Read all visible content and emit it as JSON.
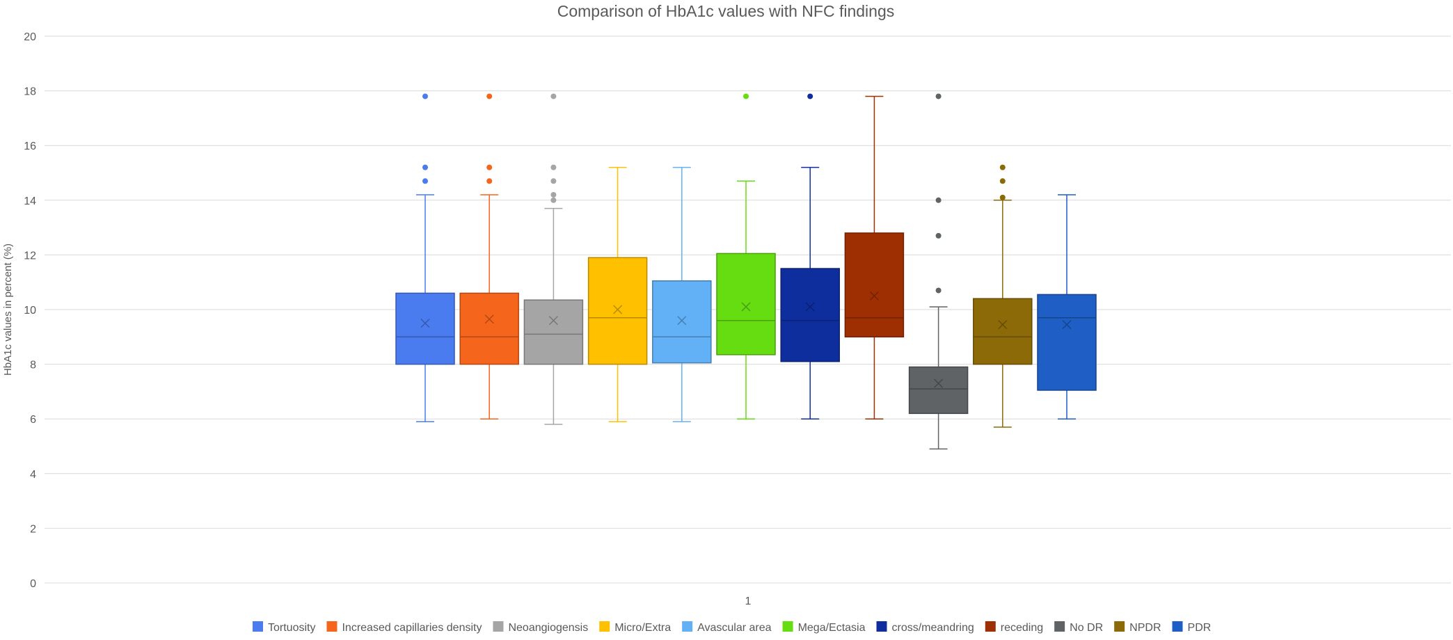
{
  "chart_data": {
    "type": "box",
    "title": "Comparison of HbA1c values with NFC findings",
    "ylabel": "HbA1c values in percent (%)",
    "xlabel": "",
    "categories": [
      "1"
    ],
    "ylim": [
      0,
      20
    ],
    "yticks": [
      0,
      2,
      4,
      6,
      8,
      10,
      12,
      14,
      16,
      18,
      20
    ],
    "grid": true,
    "legend_position": "bottom",
    "series": [
      {
        "name": "Tortuosity",
        "color": "#4A7CF0",
        "min": 5.9,
        "q1": 8.0,
        "median": 9.0,
        "q3": 10.6,
        "max": 14.2,
        "mean": 9.5,
        "outliers": [
          14.7,
          15.2,
          17.8
        ]
      },
      {
        "name": "Increased capillaries density",
        "color": "#F5651C",
        "min": 6.0,
        "q1": 8.0,
        "median": 9.0,
        "q3": 10.6,
        "max": 14.2,
        "mean": 9.65,
        "outliers": [
          14.7,
          15.2,
          17.8
        ]
      },
      {
        "name": "Neoangiogensis",
        "color": "#A5A5A5",
        "min": 5.8,
        "q1": 8.0,
        "median": 9.1,
        "q3": 10.35,
        "max": 13.7,
        "mean": 9.6,
        "outliers": [
          14.0,
          14.2,
          14.7,
          15.2,
          17.8
        ]
      },
      {
        "name": "Micro/Extra",
        "color": "#FFC000",
        "min": 5.9,
        "q1": 8.0,
        "median": 9.7,
        "q3": 11.9,
        "max": 15.2,
        "mean": 10.0,
        "outliers": []
      },
      {
        "name": "Avascular area",
        "color": "#62B0F5",
        "min": 5.9,
        "q1": 8.05,
        "median": 9.0,
        "q3": 11.05,
        "max": 15.2,
        "mean": 9.6,
        "outliers": []
      },
      {
        "name": "Mega/Ectasia",
        "color": "#66DD11",
        "min": 6.0,
        "q1": 8.35,
        "median": 9.6,
        "q3": 12.05,
        "max": 14.7,
        "mean": 10.1,
        "outliers": [
          17.8
        ]
      },
      {
        "name": "cross/meandring",
        "color": "#0F2E9E",
        "min": 6.0,
        "q1": 8.1,
        "median": 9.6,
        "q3": 11.5,
        "max": 15.2,
        "mean": 10.1,
        "outliers": [
          17.8
        ]
      },
      {
        "name": "receding",
        "color": "#9E2F03",
        "min": 6.0,
        "q1": 9.0,
        "median": 9.7,
        "q3": 12.8,
        "max": 17.8,
        "mean": 10.5,
        "outliers": []
      },
      {
        "name": "No DR",
        "color": "#5F6366",
        "min": 4.9,
        "q1": 6.2,
        "median": 7.1,
        "q3": 7.9,
        "max": 10.1,
        "mean": 7.3,
        "outliers": [
          10.7,
          12.7,
          14.0,
          17.8
        ]
      },
      {
        "name": "NPDR",
        "color": "#8B6A07",
        "min": 5.7,
        "q1": 8.0,
        "median": 9.0,
        "q3": 10.4,
        "max": 14.0,
        "mean": 9.45,
        "outliers": [
          14.1,
          14.7,
          15.2
        ]
      },
      {
        "name": "PDR",
        "color": "#1F5EC4",
        "min": 6.0,
        "q1": 7.05,
        "median": 9.7,
        "q3": 10.55,
        "max": 14.2,
        "mean": 9.45,
        "outliers": []
      }
    ]
  }
}
